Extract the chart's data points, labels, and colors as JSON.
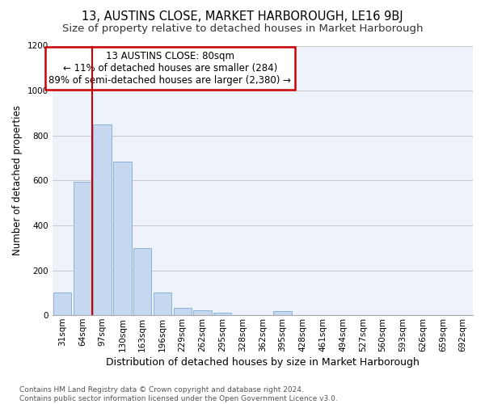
{
  "title": "13, AUSTINS CLOSE, MARKET HARBOROUGH, LE16 9BJ",
  "subtitle": "Size of property relative to detached houses in Market Harborough",
  "xlabel": "Distribution of detached houses by size in Market Harborough",
  "ylabel": "Number of detached properties",
  "categories": [
    "31sqm",
    "64sqm",
    "97sqm",
    "130sqm",
    "163sqm",
    "196sqm",
    "229sqm",
    "262sqm",
    "295sqm",
    "328sqm",
    "362sqm",
    "395sqm",
    "428sqm",
    "461sqm",
    "494sqm",
    "527sqm",
    "560sqm",
    "593sqm",
    "626sqm",
    "659sqm",
    "692sqm"
  ],
  "values": [
    100,
    595,
    850,
    685,
    300,
    100,
    33,
    22,
    10,
    0,
    0,
    18,
    0,
    0,
    0,
    0,
    0,
    0,
    0,
    0,
    0
  ],
  "bar_color": "#c5d8f0",
  "bar_edge_color": "#8ab4d8",
  "vline_x": 1.5,
  "vline_color": "#cc0000",
  "annotation_text": "13 AUSTINS CLOSE: 80sqm\n← 11% of detached houses are smaller (284)\n89% of semi-detached houses are larger (2,380) →",
  "annotation_box_color": "#ffffff",
  "annotation_box_edge": "#cc0000",
  "ylim": [
    0,
    1200
  ],
  "yticks": [
    0,
    200,
    400,
    600,
    800,
    1000,
    1200
  ],
  "grid_color": "#cccccc",
  "bg_color": "#eef2fb",
  "footnote": "Contains HM Land Registry data © Crown copyright and database right 2024.\nContains public sector information licensed under the Open Government Licence v3.0.",
  "title_fontsize": 10.5,
  "subtitle_fontsize": 9.5,
  "xlabel_fontsize": 9,
  "ylabel_fontsize": 8.5,
  "tick_fontsize": 7.5,
  "annotation_fontsize": 8.5,
  "footnote_fontsize": 6.5
}
